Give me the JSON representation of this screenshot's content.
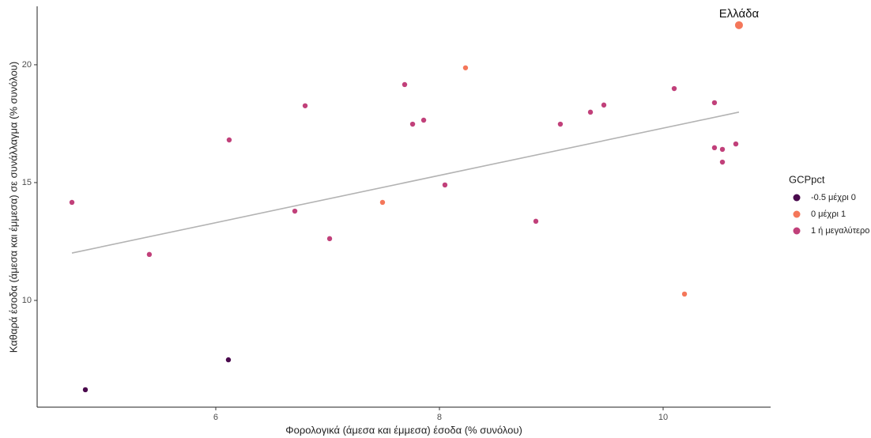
{
  "chart_data": {
    "type": "scatter",
    "x_label": "Φορολογικά (άμεσα και έμμεσα) έσοδα (% συνόλου)",
    "y_label": "Καθαρά έσοδα (άμεσα και έμμεσα) σε συνάλλαγμα (% συνόλου)",
    "xlim": [
      4.403,
      10.961
    ],
    "ylim": [
      5.47,
      22.48
    ],
    "xticks": [
      6,
      8,
      10
    ],
    "yticks": [
      10,
      15,
      20
    ],
    "legend_title": "GCPpct",
    "series": [
      {
        "name": "-0.5 μέχρι 0",
        "color": "#4a0a4d",
        "x": [
          4.834,
          6.113
        ],
        "y": [
          6.21,
          7.48
        ]
      },
      {
        "name": "0 μέχρι 1",
        "color": "#f4775a",
        "x": [
          7.491,
          8.233,
          10.191,
          10.678
        ],
        "y": [
          14.16,
          19.87,
          10.27,
          21.68
        ]
      },
      {
        "name": "1 ή μεγαλύτερο",
        "color": "#c1407a",
        "x": [
          4.714,
          5.406,
          6.12,
          6.707,
          6.799,
          7.018,
          7.689,
          7.76,
          7.859,
          8.049,
          8.862,
          9.081,
          9.35,
          9.47,
          10.099,
          10.459,
          10.459,
          10.53,
          10.53,
          10.65
        ],
        "y": [
          14.16,
          11.95,
          16.81,
          13.79,
          18.26,
          12.62,
          19.16,
          17.48,
          17.65,
          14.9,
          13.36,
          17.48,
          17.99,
          18.29,
          18.99,
          18.39,
          16.48,
          16.41,
          15.87,
          16.64
        ]
      }
    ],
    "trendline": {
      "color": "#b3b3b3",
      "x": [
        4.714,
        10.678
      ],
      "y": [
        12.01,
        17.99
      ]
    },
    "annotations": [
      {
        "text": "Ελλάδα",
        "x": 10.678,
        "y": 21.68
      }
    ]
  }
}
